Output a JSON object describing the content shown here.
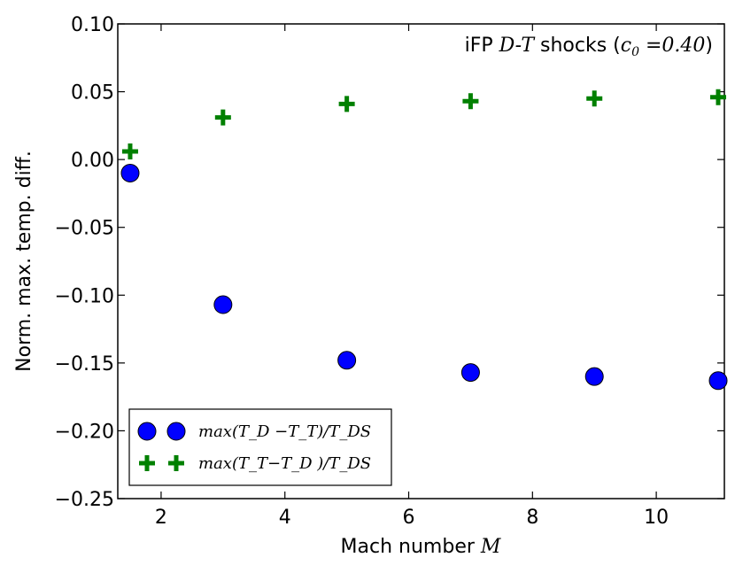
{
  "chart_data": {
    "type": "scatter",
    "annotation": {
      "prefix": "iFP ",
      "species": "D-T",
      "middle": " shocks (",
      "param": "c",
      "param_sub": "0",
      "param_value": " =0.40",
      "suffix": ")"
    },
    "xlabel": {
      "text": "Mach number ",
      "symbol": "M"
    },
    "ylabel": "Norm. max. temp. diff.",
    "xlim": [
      1.3,
      11.1
    ],
    "ylim": [
      -0.25,
      0.1
    ],
    "xticks": [
      2,
      4,
      6,
      8,
      10
    ],
    "yticks": [
      0.1,
      0.05,
      0.0,
      -0.05,
      -0.1,
      -0.15,
      -0.2,
      -0.25
    ],
    "xtick_labels": [
      "2",
      "4",
      "6",
      "8",
      "10"
    ],
    "ytick_labels": [
      "0.10",
      "0.05",
      "0.00",
      "−0.05",
      "−0.10",
      "−0.15",
      "−0.20",
      "−0.25"
    ],
    "grid": false,
    "legend_position": "lower-left",
    "series": [
      {
        "name": "max(T_D - T_T)/T_DS",
        "legend_label": "max(T_D −T_T)/T_DS",
        "marker": "circle",
        "color": "#0000ff",
        "x": [
          1.5,
          3,
          5,
          7,
          9,
          11
        ],
        "y": [
          -0.01,
          -0.107,
          -0.148,
          -0.157,
          -0.16,
          -0.163
        ]
      },
      {
        "name": "max(T_T - T_D)/T_DS",
        "legend_label": "max(T_T−T_D )/T_DS",
        "marker": "plus",
        "color": "#008000",
        "x": [
          1.5,
          3,
          5,
          7,
          9,
          11
        ],
        "y": [
          0.006,
          0.031,
          0.041,
          0.043,
          0.045,
          0.046
        ]
      }
    ]
  }
}
